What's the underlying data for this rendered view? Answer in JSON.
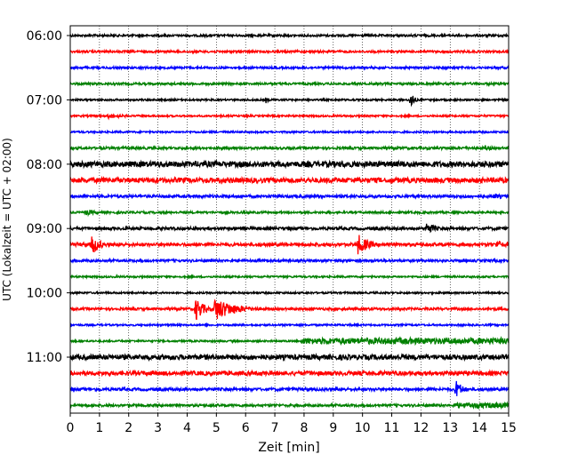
{
  "chart_data": {
    "type": "line",
    "title": "",
    "xlabel": "Zeit  [min]",
    "ylabel": "UTC (Lokalzeit = UTC + 02:00)",
    "xlim": [
      0,
      15
    ],
    "x_ticks": [
      "0",
      "1",
      "2",
      "3",
      "4",
      "5",
      "6",
      "7",
      "8",
      "9",
      "10",
      "11",
      "12",
      "13",
      "14",
      "15"
    ],
    "y_ticks": [
      "06:00",
      "07:00",
      "08:00",
      "09:00",
      "10:00",
      "11:00"
    ],
    "grid": "vertical dotted",
    "trace_interval_min": 15,
    "colors": [
      "#000000",
      "#ff0000",
      "#0000ff",
      "#008000"
    ],
    "traces": [
      {
        "start": "06:00",
        "color": "#000000",
        "noise": 1.2,
        "events": [
          {
            "t": 14.8,
            "amp": 2
          }
        ]
      },
      {
        "start": "06:15",
        "color": "#ff0000",
        "noise": 1.2,
        "events": []
      },
      {
        "start": "06:30",
        "color": "#0000ff",
        "noise": 1.2,
        "events": []
      },
      {
        "start": "06:45",
        "color": "#008000",
        "noise": 1.2,
        "events": []
      },
      {
        "start": "07:00",
        "color": "#000000",
        "noise": 1.0,
        "events": [
          {
            "t": 6.7,
            "amp": 4
          },
          {
            "t": 11.65,
            "amp": 11
          }
        ]
      },
      {
        "start": "07:15",
        "color": "#ff0000",
        "noise": 1.0,
        "events": [
          {
            "t": 1.3,
            "amp": 3,
            "dur": 1.5
          }
        ]
      },
      {
        "start": "07:30",
        "color": "#0000ff",
        "noise": 1.0,
        "events": []
      },
      {
        "start": "07:45",
        "color": "#008000",
        "noise": 1.4,
        "events": [
          {
            "t": 14.2,
            "amp": 3,
            "dur": 0.8
          }
        ]
      },
      {
        "start": "08:00",
        "color": "#000000",
        "noise": 3.2,
        "events": []
      },
      {
        "start": "08:15",
        "color": "#ff0000",
        "noise": 2.8,
        "events": []
      },
      {
        "start": "08:30",
        "color": "#0000ff",
        "noise": 1.6,
        "events": [
          {
            "t": 14.5,
            "amp": 3,
            "dur": 1
          }
        ]
      },
      {
        "start": "08:45",
        "color": "#008000",
        "noise": 1.2,
        "events": [
          {
            "t": 0.5,
            "amp": 3,
            "dur": 1.8
          }
        ]
      },
      {
        "start": "09:00",
        "color": "#000000",
        "noise": 1.6,
        "events": [
          {
            "t": 12.2,
            "amp": 8,
            "dur": 0.6
          }
        ]
      },
      {
        "start": "09:15",
        "color": "#ff0000",
        "noise": 1.8,
        "events": [
          {
            "t": 0.75,
            "amp": 12,
            "dur": 0.6
          },
          {
            "t": 9.85,
            "amp": 12,
            "dur": 0.8
          },
          {
            "t": 14.6,
            "amp": 5,
            "dur": 0.8
          }
        ]
      },
      {
        "start": "09:30",
        "color": "#0000ff",
        "noise": 1.4,
        "events": []
      },
      {
        "start": "09:45",
        "color": "#008000",
        "noise": 1.0,
        "events": []
      },
      {
        "start": "10:00",
        "color": "#000000",
        "noise": 1.0,
        "events": []
      },
      {
        "start": "10:15",
        "color": "#ff0000",
        "noise": 1.4,
        "events": [
          {
            "t": 4.3,
            "amp": 14,
            "dur": 0.6
          },
          {
            "t": 4.95,
            "amp": 13,
            "dur": 1.6
          }
        ]
      },
      {
        "start": "10:30",
        "color": "#0000ff",
        "noise": 1.0,
        "events": []
      },
      {
        "start": "10:45",
        "color": "#008000",
        "noise": 1.0,
        "events": [
          {
            "t": 7.9,
            "amp": 3.5,
            "dur": 7.1,
            "flat": true
          }
        ]
      },
      {
        "start": "11:00",
        "color": "#000000",
        "noise": 2.8,
        "events": []
      },
      {
        "start": "11:15",
        "color": "#ff0000",
        "noise": 2.4,
        "events": []
      },
      {
        "start": "11:30",
        "color": "#0000ff",
        "noise": 1.6,
        "events": [
          {
            "t": 0.9,
            "amp": 2.5,
            "dur": 1.2
          },
          {
            "t": 13.2,
            "amp": 11,
            "dur": 0.5
          }
        ]
      },
      {
        "start": "11:45",
        "color": "#008000",
        "noise": 1.4,
        "events": [
          {
            "t": 13.1,
            "amp": 3,
            "dur": 1.9,
            "flat": true
          }
        ]
      }
    ]
  }
}
